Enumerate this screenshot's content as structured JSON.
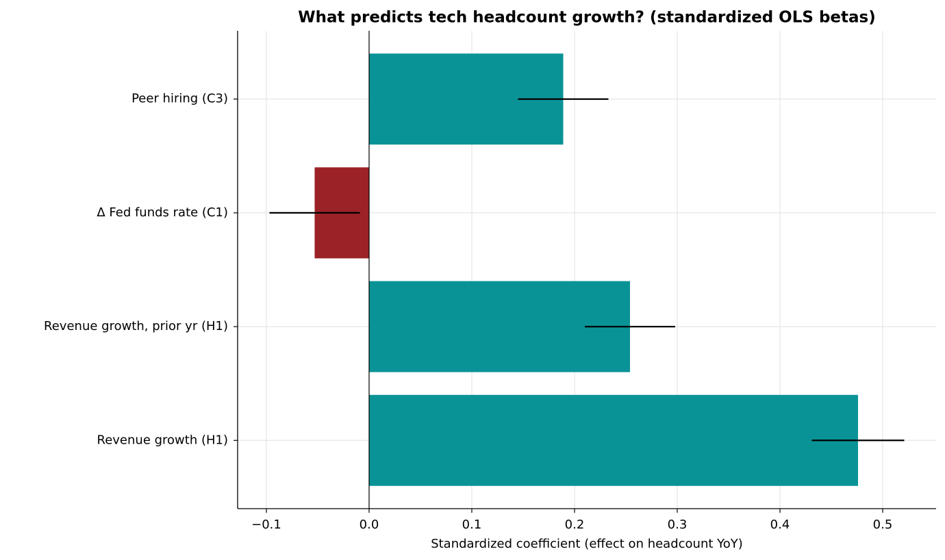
{
  "chart_data": {
    "type": "bar",
    "orientation": "horizontal",
    "title": "What predicts tech headcount growth? (standardized OLS betas)",
    "xlabel": "Standardized coefficient (effect on headcount YoY)",
    "categories": [
      "Revenue growth (H1)",
      "Revenue growth, prior yr (H1)",
      "Δ Fed funds rate (C1)",
      "Peer hiring (C3)"
    ],
    "values": [
      0.476,
      0.254,
      -0.053,
      0.189
    ],
    "errors": [
      0.045,
      0.044,
      0.044,
      0.044
    ],
    "colors": [
      "#0a9396",
      "#0a9396",
      "#9b2226",
      "#0a9396"
    ],
    "xlim": [
      -0.128,
      0.552
    ],
    "xticks": [
      {
        "value": -0.1,
        "label": "−0.1"
      },
      {
        "value": 0,
        "label": "0.0"
      },
      0.1,
      0.2,
      0.3,
      0.4,
      0.5
    ],
    "grid": true
  }
}
